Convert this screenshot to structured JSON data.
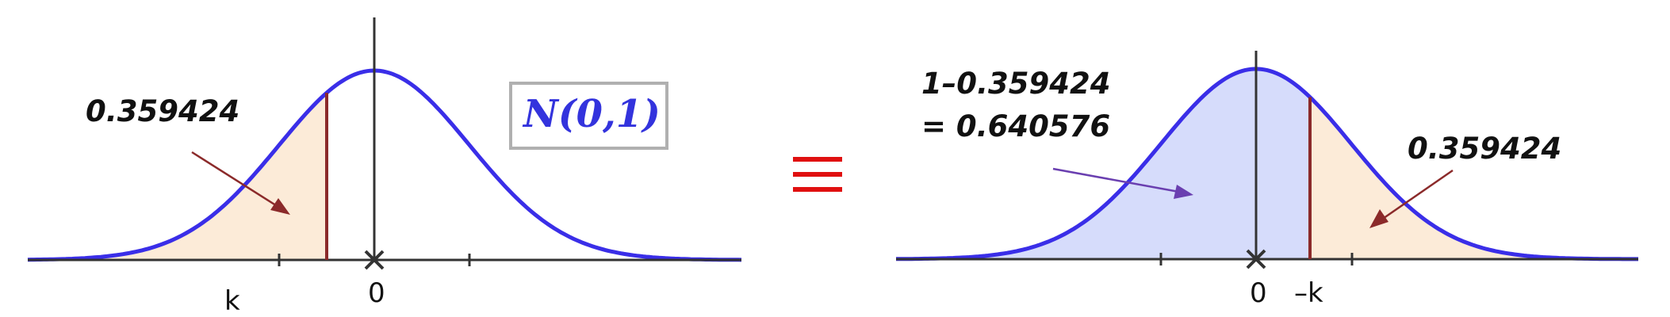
{
  "left_panel": {
    "area_value": "0.359424",
    "tick_labels": {
      "k": "k",
      "zero": "0"
    },
    "distribution_label": "N(0,1)",
    "shading_color": "#fcebd8"
  },
  "equivalence_symbol": "≡",
  "right_panel": {
    "left_area_line1": "1–0.359424",
    "left_area_line2": "= 0.640576",
    "right_area_value": "0.359424",
    "tick_labels": {
      "zero": "0",
      "neg_k": "–k"
    },
    "left_shading_color": "#d6dcfb",
    "right_shading_color": "#fcebd8"
  },
  "colors": {
    "curve": "#3a2ee8",
    "cut_line": "#8b2a2a",
    "axis": "#333333",
    "equiv": "#e01010",
    "box_border": "#b0b0b0"
  }
}
